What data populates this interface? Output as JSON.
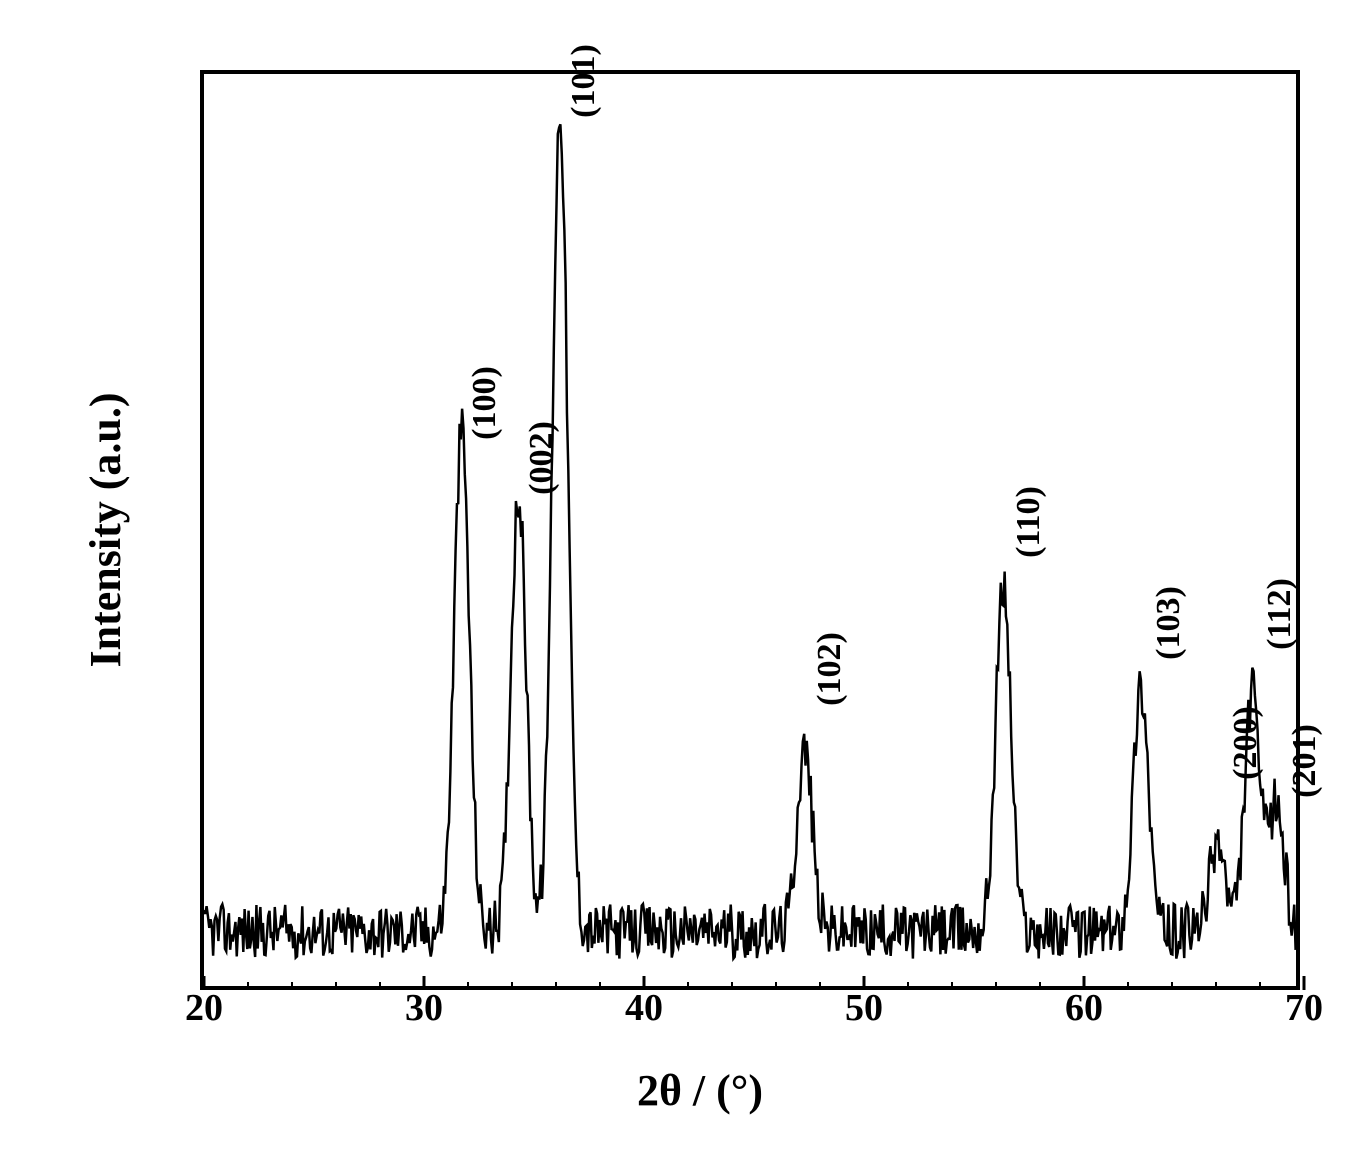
{
  "xrd_chart": {
    "type": "line",
    "ylabel": "Intensity (a.u.)",
    "xlabel": "2θ / (°)",
    "xlim": [
      20,
      70
    ],
    "ylim": [
      0,
      100
    ],
    "xticks": [
      20,
      30,
      40,
      50,
      60,
      70
    ],
    "xminor_step": 2,
    "line_color": "#000000",
    "line_width": 2.5,
    "background_color": "#ffffff",
    "border_color": "#000000",
    "border_width": 4,
    "label_fontsize": 44,
    "tick_fontsize": 38,
    "peak_label_fontsize": 34,
    "peaks": [
      {
        "two_theta": 31.8,
        "intensity": 55,
        "label": "(100)",
        "label_y_offset": 62
      },
      {
        "two_theta": 34.4,
        "intensity": 48,
        "label": "(002)",
        "label_y_offset": 56
      },
      {
        "two_theta": 36.3,
        "intensity": 90,
        "label": "(101)",
        "label_y_offset": 97
      },
      {
        "two_theta": 47.5,
        "intensity": 20,
        "label": "(102)",
        "label_y_offset": 33
      },
      {
        "two_theta": 56.6,
        "intensity": 38,
        "label": "(110)",
        "label_y_offset": 49
      },
      {
        "two_theta": 62.9,
        "intensity": 27,
        "label": "(103)",
        "label_y_offset": 38
      },
      {
        "two_theta": 66.4,
        "intensity": 10,
        "label": "(200)",
        "label_y_offset": 25
      },
      {
        "two_theta": 68.0,
        "intensity": 26,
        "label": "(112)",
        "label_y_offset": 39
      },
      {
        "two_theta": 69.1,
        "intensity": 14,
        "label": "(201)",
        "label_y_offset": 23
      }
    ],
    "baseline_noise_amplitude": 3,
    "baseline_level": 6,
    "peak_width": 0.7
  }
}
